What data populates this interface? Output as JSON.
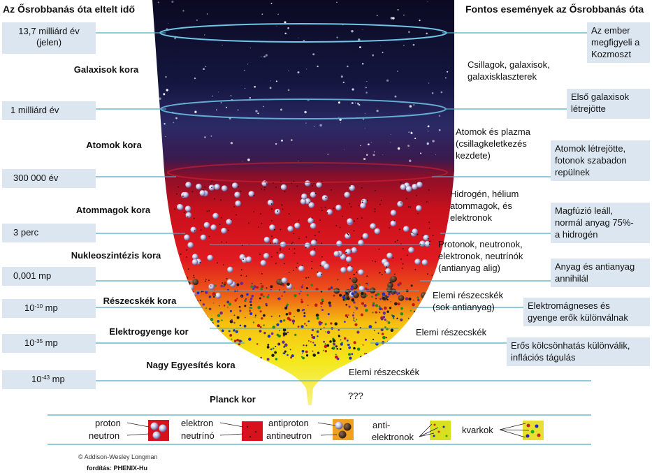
{
  "header": {
    "left_title": "Az Ősrobbanás óta eltelt idő",
    "right_title": "Fontos események az Ősrobbanás óta"
  },
  "timeline": [
    {
      "time_lines": [
        "13,7 milliárd év",
        "(jelen)"
      ]
    },
    {
      "time": "1 milliárd év"
    },
    {
      "time": "300 000 év"
    },
    {
      "time": "3 perc"
    },
    {
      "time": "0,001 mp"
    },
    {
      "time_base": "10",
      "time_exp": "-10",
      "time_unit": " mp"
    },
    {
      "time_base": "10",
      "time_exp": "-35",
      "time_unit": " mp"
    },
    {
      "time_base": "10",
      "time_exp": "-43",
      "time_unit": " mp"
    }
  ],
  "eras": [
    "Galaxisok kora",
    "Atomok kora",
    "Atommagok kora",
    "Nukleoszintézis kora",
    "Részecskék kora",
    "Elektrogyenge kor",
    "Nagy Egyesítés kora",
    "Planck kor"
  ],
  "contents": [
    [
      "Csillagok, galaxisok,",
      "galaxisklaszterek"
    ],
    [
      "Atomok és plazma",
      "(csillagkeletkezés",
      "kezdete)"
    ],
    [
      "Hidrogén, hélium",
      "atommagok, és",
      "elektronok"
    ],
    [
      "Protonok, neutronok,",
      "elektronok, neutrínók",
      "(antianyag alig)"
    ],
    [
      "Elemi részecskék",
      "(sok antianyag)"
    ],
    [
      "Elemi részecskék"
    ],
    [
      "Elemi részecskék"
    ],
    [
      "???"
    ]
  ],
  "events": [
    [
      "Az ember",
      "megfigyeli a",
      "Kozmoszt"
    ],
    [
      "Első galaxisok",
      "létrejötte"
    ],
    [
      "Atomok létrejötte,",
      "fotonok szabadon",
      "repülnek"
    ],
    [
      "Magfúzió leáll,",
      "normál anyag 75%-",
      "a hidrogén"
    ],
    [
      "Anyag és antianyag",
      "annihilál"
    ],
    [
      "Elektromágneses és",
      "gyenge erők különválnak"
    ],
    [
      "Erős kölcsönhatás különválik,",
      "inflációs tágulás"
    ]
  ],
  "legend": {
    "proton": "proton",
    "neutron": "neutron",
    "electron": "elektron",
    "neutrino": "neutrínó",
    "antiproton": "antiproton",
    "antineutron": "antineutron",
    "antielectrons_1": "anti-",
    "antielectrons_2": "elektronok",
    "quarks": "kvarkok"
  },
  "footer": {
    "copyright": "© Addison-Wesley Longman",
    "translation": "fordítás: PHENIX-Hu"
  },
  "colors": {
    "label_box": "#dce6f1",
    "connector_line": "#4bacc6",
    "space": "#0d0a25",
    "plasma_red": "#d8121c",
    "hot_yellow": "#f6e200"
  }
}
